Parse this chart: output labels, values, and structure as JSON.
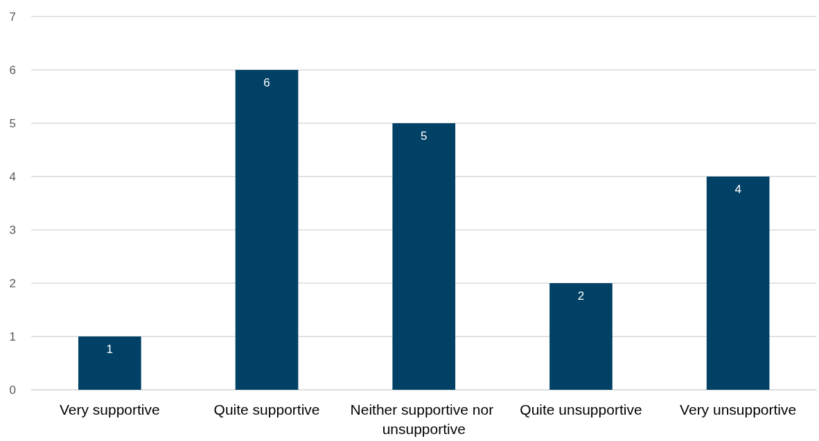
{
  "chart_data": {
    "type": "bar",
    "categories": [
      "Very supportive",
      "Quite supportive",
      "Neither supportive nor unsupportive",
      "Quite unsupportive",
      "Very unsupportive"
    ],
    "values": [
      1,
      6,
      5,
      2,
      4
    ],
    "color": "#004165",
    "ylim": [
      0,
      7
    ],
    "yticks": [
      0,
      1,
      2,
      3,
      4,
      5,
      6,
      7
    ],
    "grid": "y",
    "data_labels": true
  }
}
